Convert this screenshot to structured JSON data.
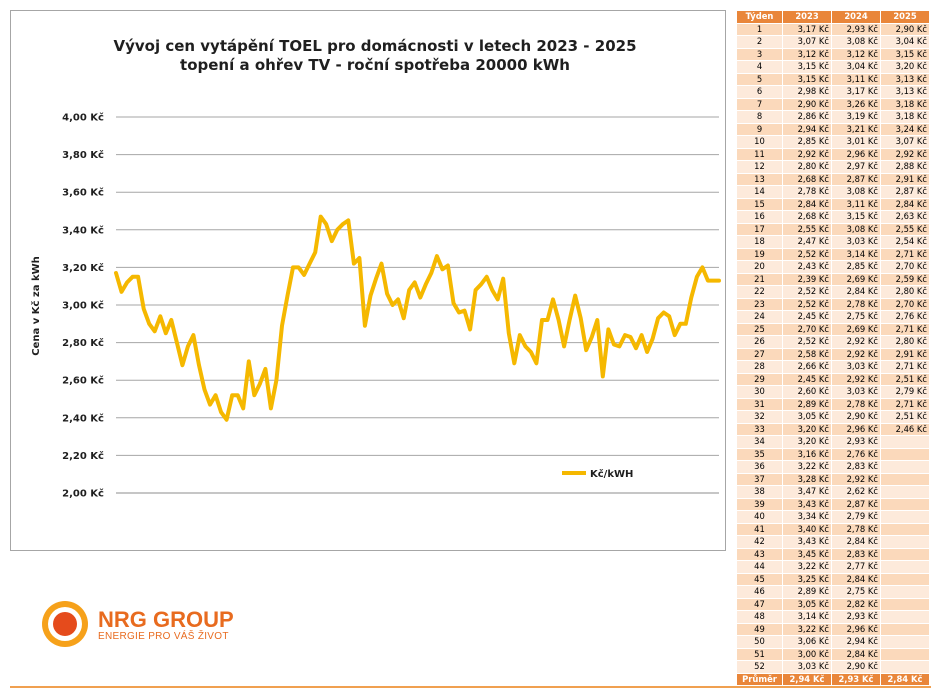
{
  "chart_data": {
    "type": "line",
    "title_line1": "Vývoj cen vytápění TOEL pro domácnosti v letech 2023 - 2025",
    "title_line2": "topení a ohřev TV - roční spotřeba 20000 kWh",
    "ylabel": "Cena v Kč za kWh",
    "xlabel": "",
    "ylim": [
      2.0,
      4.0
    ],
    "y_ticks": [
      "2,00 Kč",
      "2,20 Kč",
      "2,40 Kč",
      "2,60 Kč",
      "2,80 Kč",
      "3,00 Kč",
      "3,20 Kč",
      "3,40 Kč",
      "3,60 Kč",
      "3,80 Kč",
      "4,00 Kč"
    ],
    "grid": true,
    "legend_position": "right",
    "line_color": "#f5b800",
    "series": [
      {
        "name": "Kč/kWH",
        "values": [
          3.17,
          3.07,
          3.12,
          3.15,
          3.15,
          2.98,
          2.9,
          2.86,
          2.94,
          2.85,
          2.92,
          2.8,
          2.68,
          2.78,
          2.84,
          2.68,
          2.55,
          2.47,
          2.52,
          2.43,
          2.39,
          2.52,
          2.52,
          2.45,
          2.7,
          2.52,
          2.58,
          2.66,
          2.45,
          2.6,
          2.89,
          3.05,
          3.2,
          3.2,
          3.16,
          3.22,
          3.28,
          3.47,
          3.43,
          3.34,
          3.4,
          3.43,
          3.45,
          3.22,
          3.25,
          2.89,
          3.05,
          3.14,
          3.22,
          3.06,
          3.0,
          3.03,
          2.93,
          3.08,
          3.12,
          3.04,
          3.11,
          3.17,
          3.26,
          3.19,
          3.21,
          3.01,
          2.96,
          2.97,
          2.87,
          3.08,
          3.11,
          3.15,
          3.08,
          3.03,
          3.14,
          2.85,
          2.69,
          2.84,
          2.78,
          2.75,
          2.69,
          2.92,
          2.92,
          3.03,
          2.92,
          2.78,
          2.92,
          3.05,
          2.93,
          2.76,
          2.83,
          2.92,
          2.62,
          2.87,
          2.79,
          2.78,
          2.84,
          2.83,
          2.77,
          2.84,
          2.75,
          2.82,
          2.93,
          2.96,
          2.94,
          2.84,
          2.9,
          2.9,
          3.04,
          3.15,
          3.2,
          3.13,
          3.13,
          3.13
        ]
      }
    ]
  },
  "table": {
    "headers": [
      "Týden",
      "2023",
      "2024",
      "2025"
    ],
    "rows": [
      [
        "1",
        "3,17 Kč",
        "2,93 Kč",
        "2,90 Kč"
      ],
      [
        "2",
        "3,07 Kč",
        "3,08 Kč",
        "3,04 Kč"
      ],
      [
        "3",
        "3,12 Kč",
        "3,12 Kč",
        "3,15 Kč"
      ],
      [
        "4",
        "3,15 Kč",
        "3,04 Kč",
        "3,20 Kč"
      ],
      [
        "5",
        "3,15 Kč",
        "3,11 Kč",
        "3,13 Kč"
      ],
      [
        "6",
        "2,98 Kč",
        "3,17 Kč",
        "3,13 Kč"
      ],
      [
        "7",
        "2,90 Kč",
        "3,26 Kč",
        "3,18 Kč"
      ],
      [
        "8",
        "2,86 Kč",
        "3,19 Kč",
        "3,18 Kč"
      ],
      [
        "9",
        "2,94 Kč",
        "3,21 Kč",
        "3,24 Kč"
      ],
      [
        "10",
        "2,85 Kč",
        "3,01 Kč",
        "3,07 Kč"
      ],
      [
        "11",
        "2,92 Kč",
        "2,96 Kč",
        "2,92 Kč"
      ],
      [
        "12",
        "2,80 Kč",
        "2,97 Kč",
        "2,88 Kč"
      ],
      [
        "13",
        "2,68 Kč",
        "2,87 Kč",
        "2,91 Kč"
      ],
      [
        "14",
        "2,78 Kč",
        "3,08 Kč",
        "2,87 Kč"
      ],
      [
        "15",
        "2,84 Kč",
        "3,11 Kč",
        "2,84 Kč"
      ],
      [
        "16",
        "2,68 Kč",
        "3,15 Kč",
        "2,63 Kč"
      ],
      [
        "17",
        "2,55 Kč",
        "3,08 Kč",
        "2,55 Kč"
      ],
      [
        "18",
        "2,47 Kč",
        "3,03 Kč",
        "2,54 Kč"
      ],
      [
        "19",
        "2,52 Kč",
        "3,14 Kč",
        "2,71 Kč"
      ],
      [
        "20",
        "2,43 Kč",
        "2,85 Kč",
        "2,70 Kč"
      ],
      [
        "21",
        "2,39 Kč",
        "2,69 Kč",
        "2,59 Kč"
      ],
      [
        "22",
        "2,52 Kč",
        "2,84 Kč",
        "2,80 Kč"
      ],
      [
        "23",
        "2,52 Kč",
        "2,78 Kč",
        "2,70 Kč"
      ],
      [
        "24",
        "2,45 Kč",
        "2,75 Kč",
        "2,76 Kč"
      ],
      [
        "25",
        "2,70 Kč",
        "2,69 Kč",
        "2,71 Kč"
      ],
      [
        "26",
        "2,52 Kč",
        "2,92 Kč",
        "2,80 Kč"
      ],
      [
        "27",
        "2,58 Kč",
        "2,92 Kč",
        "2,91 Kč"
      ],
      [
        "28",
        "2,66 Kč",
        "3,03 Kč",
        "2,71 Kč"
      ],
      [
        "29",
        "2,45 Kč",
        "2,92 Kč",
        "2,51 Kč"
      ],
      [
        "30",
        "2,60 Kč",
        "3,03 Kč",
        "2,79 Kč"
      ],
      [
        "31",
        "2,89 Kč",
        "2,78 Kč",
        "2,71 Kč"
      ],
      [
        "32",
        "3,05 Kč",
        "2,90 Kč",
        "2,51 Kč"
      ],
      [
        "33",
        "3,20 Kč",
        "2,96 Kč",
        "2,46 Kč"
      ],
      [
        "34",
        "3,20 Kč",
        "2,93 Kč",
        ""
      ],
      [
        "35",
        "3,16 Kč",
        "2,76 Kč",
        ""
      ],
      [
        "36",
        "3,22 Kč",
        "2,83 Kč",
        ""
      ],
      [
        "37",
        "3,28 Kč",
        "2,92 Kč",
        ""
      ],
      [
        "38",
        "3,47 Kč",
        "2,62 Kč",
        ""
      ],
      [
        "39",
        "3,43 Kč",
        "2,87 Kč",
        ""
      ],
      [
        "40",
        "3,34 Kč",
        "2,79 Kč",
        ""
      ],
      [
        "41",
        "3,40 Kč",
        "2,78 Kč",
        ""
      ],
      [
        "42",
        "3,43 Kč",
        "2,84 Kč",
        ""
      ],
      [
        "43",
        "3,45 Kč",
        "2,83 Kč",
        ""
      ],
      [
        "44",
        "3,22 Kč",
        "2,77 Kč",
        ""
      ],
      [
        "45",
        "3,25 Kč",
        "2,84 Kč",
        ""
      ],
      [
        "46",
        "2,89 Kč",
        "2,75 Kč",
        ""
      ],
      [
        "47",
        "3,05 Kč",
        "2,82 Kč",
        ""
      ],
      [
        "48",
        "3,14 Kč",
        "2,93 Kč",
        ""
      ],
      [
        "49",
        "3,22 Kč",
        "2,96 Kč",
        ""
      ],
      [
        "50",
        "3,06 Kč",
        "2,94 Kč",
        ""
      ],
      [
        "51",
        "3,00 Kč",
        "2,84 Kč",
        ""
      ],
      [
        "52",
        "3,03 Kč",
        "2,90 Kč",
        ""
      ]
    ],
    "average": [
      "Průměr",
      "2,94 Kč",
      "2,93 Kč",
      "2,84 Kč"
    ]
  },
  "logo": {
    "name": "NRG GROUP",
    "tagline": "ENERGIE PRO VÁŠ ŽIVOT",
    "color": "#e86b1f"
  },
  "colors": {
    "accent": "#e9863a",
    "row_odd": "#fbd9bb",
    "row_even": "#fdeadb"
  }
}
